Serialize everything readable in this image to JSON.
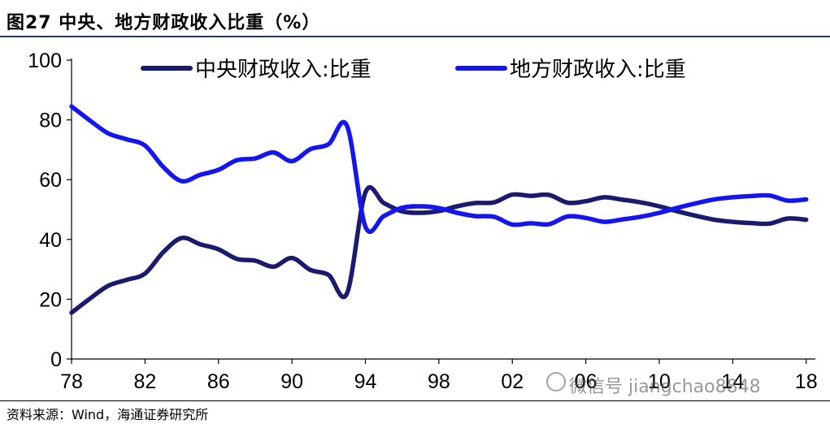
{
  "header": {
    "title": "图27 中央、地方财政收入比重（%）"
  },
  "footer": {
    "source": "资料来源：Wind，海通证券研究所"
  },
  "watermark": {
    "text": "微信号 jiangchao8848"
  },
  "chart_data": {
    "type": "line",
    "title": "",
    "xlabel": "",
    "ylabel": "",
    "ylim": [
      0,
      100
    ],
    "yticks": [
      0,
      20,
      40,
      60,
      80,
      100
    ],
    "xticks": [
      "78",
      "82",
      "86",
      "90",
      "94",
      "98",
      "02",
      "06",
      "10",
      "14",
      "18"
    ],
    "xlim": [
      1978,
      2018.5
    ],
    "grid": false,
    "legend_position": "top",
    "x": [
      1978,
      1979,
      1980,
      1981,
      1982,
      1983,
      1984,
      1985,
      1986,
      1987,
      1988,
      1989,
      1990,
      1991,
      1992,
      1993,
      1994,
      1995,
      1996,
      1997,
      1998,
      1999,
      2000,
      2001,
      2002,
      2003,
      2004,
      2005,
      2006,
      2007,
      2008,
      2009,
      2010,
      2011,
      2012,
      2013,
      2014,
      2015,
      2016,
      2017,
      2018
    ],
    "series": [
      {
        "name": "中央财政收入:比重",
        "color": "#1a1a6e",
        "values": [
          15.5,
          20.2,
          24.5,
          26.5,
          28.6,
          35.8,
          40.5,
          38.4,
          36.7,
          33.5,
          32.9,
          30.9,
          33.8,
          29.8,
          28.1,
          22.0,
          55.7,
          52.2,
          49.4,
          48.9,
          49.5,
          51.1,
          52.2,
          52.4,
          55.0,
          54.6,
          54.9,
          52.3,
          52.8,
          54.1,
          53.3,
          52.4,
          51.1,
          49.4,
          47.9,
          46.6,
          45.9,
          45.5,
          45.3,
          47.0,
          46.6
        ]
      },
      {
        "name": "地方财政收入:比重",
        "color": "#1515f0",
        "values": [
          84.5,
          79.8,
          75.5,
          73.5,
          71.4,
          64.2,
          59.5,
          61.6,
          63.3,
          66.5,
          67.1,
          69.1,
          66.2,
          70.2,
          71.9,
          78.0,
          44.3,
          47.8,
          50.6,
          51.1,
          50.5,
          48.9,
          47.8,
          47.6,
          45.0,
          45.4,
          45.1,
          47.7,
          47.2,
          45.9,
          46.7,
          47.6,
          48.9,
          50.6,
          52.1,
          53.4,
          54.1,
          54.5,
          54.7,
          53.0,
          53.4
        ]
      }
    ]
  }
}
